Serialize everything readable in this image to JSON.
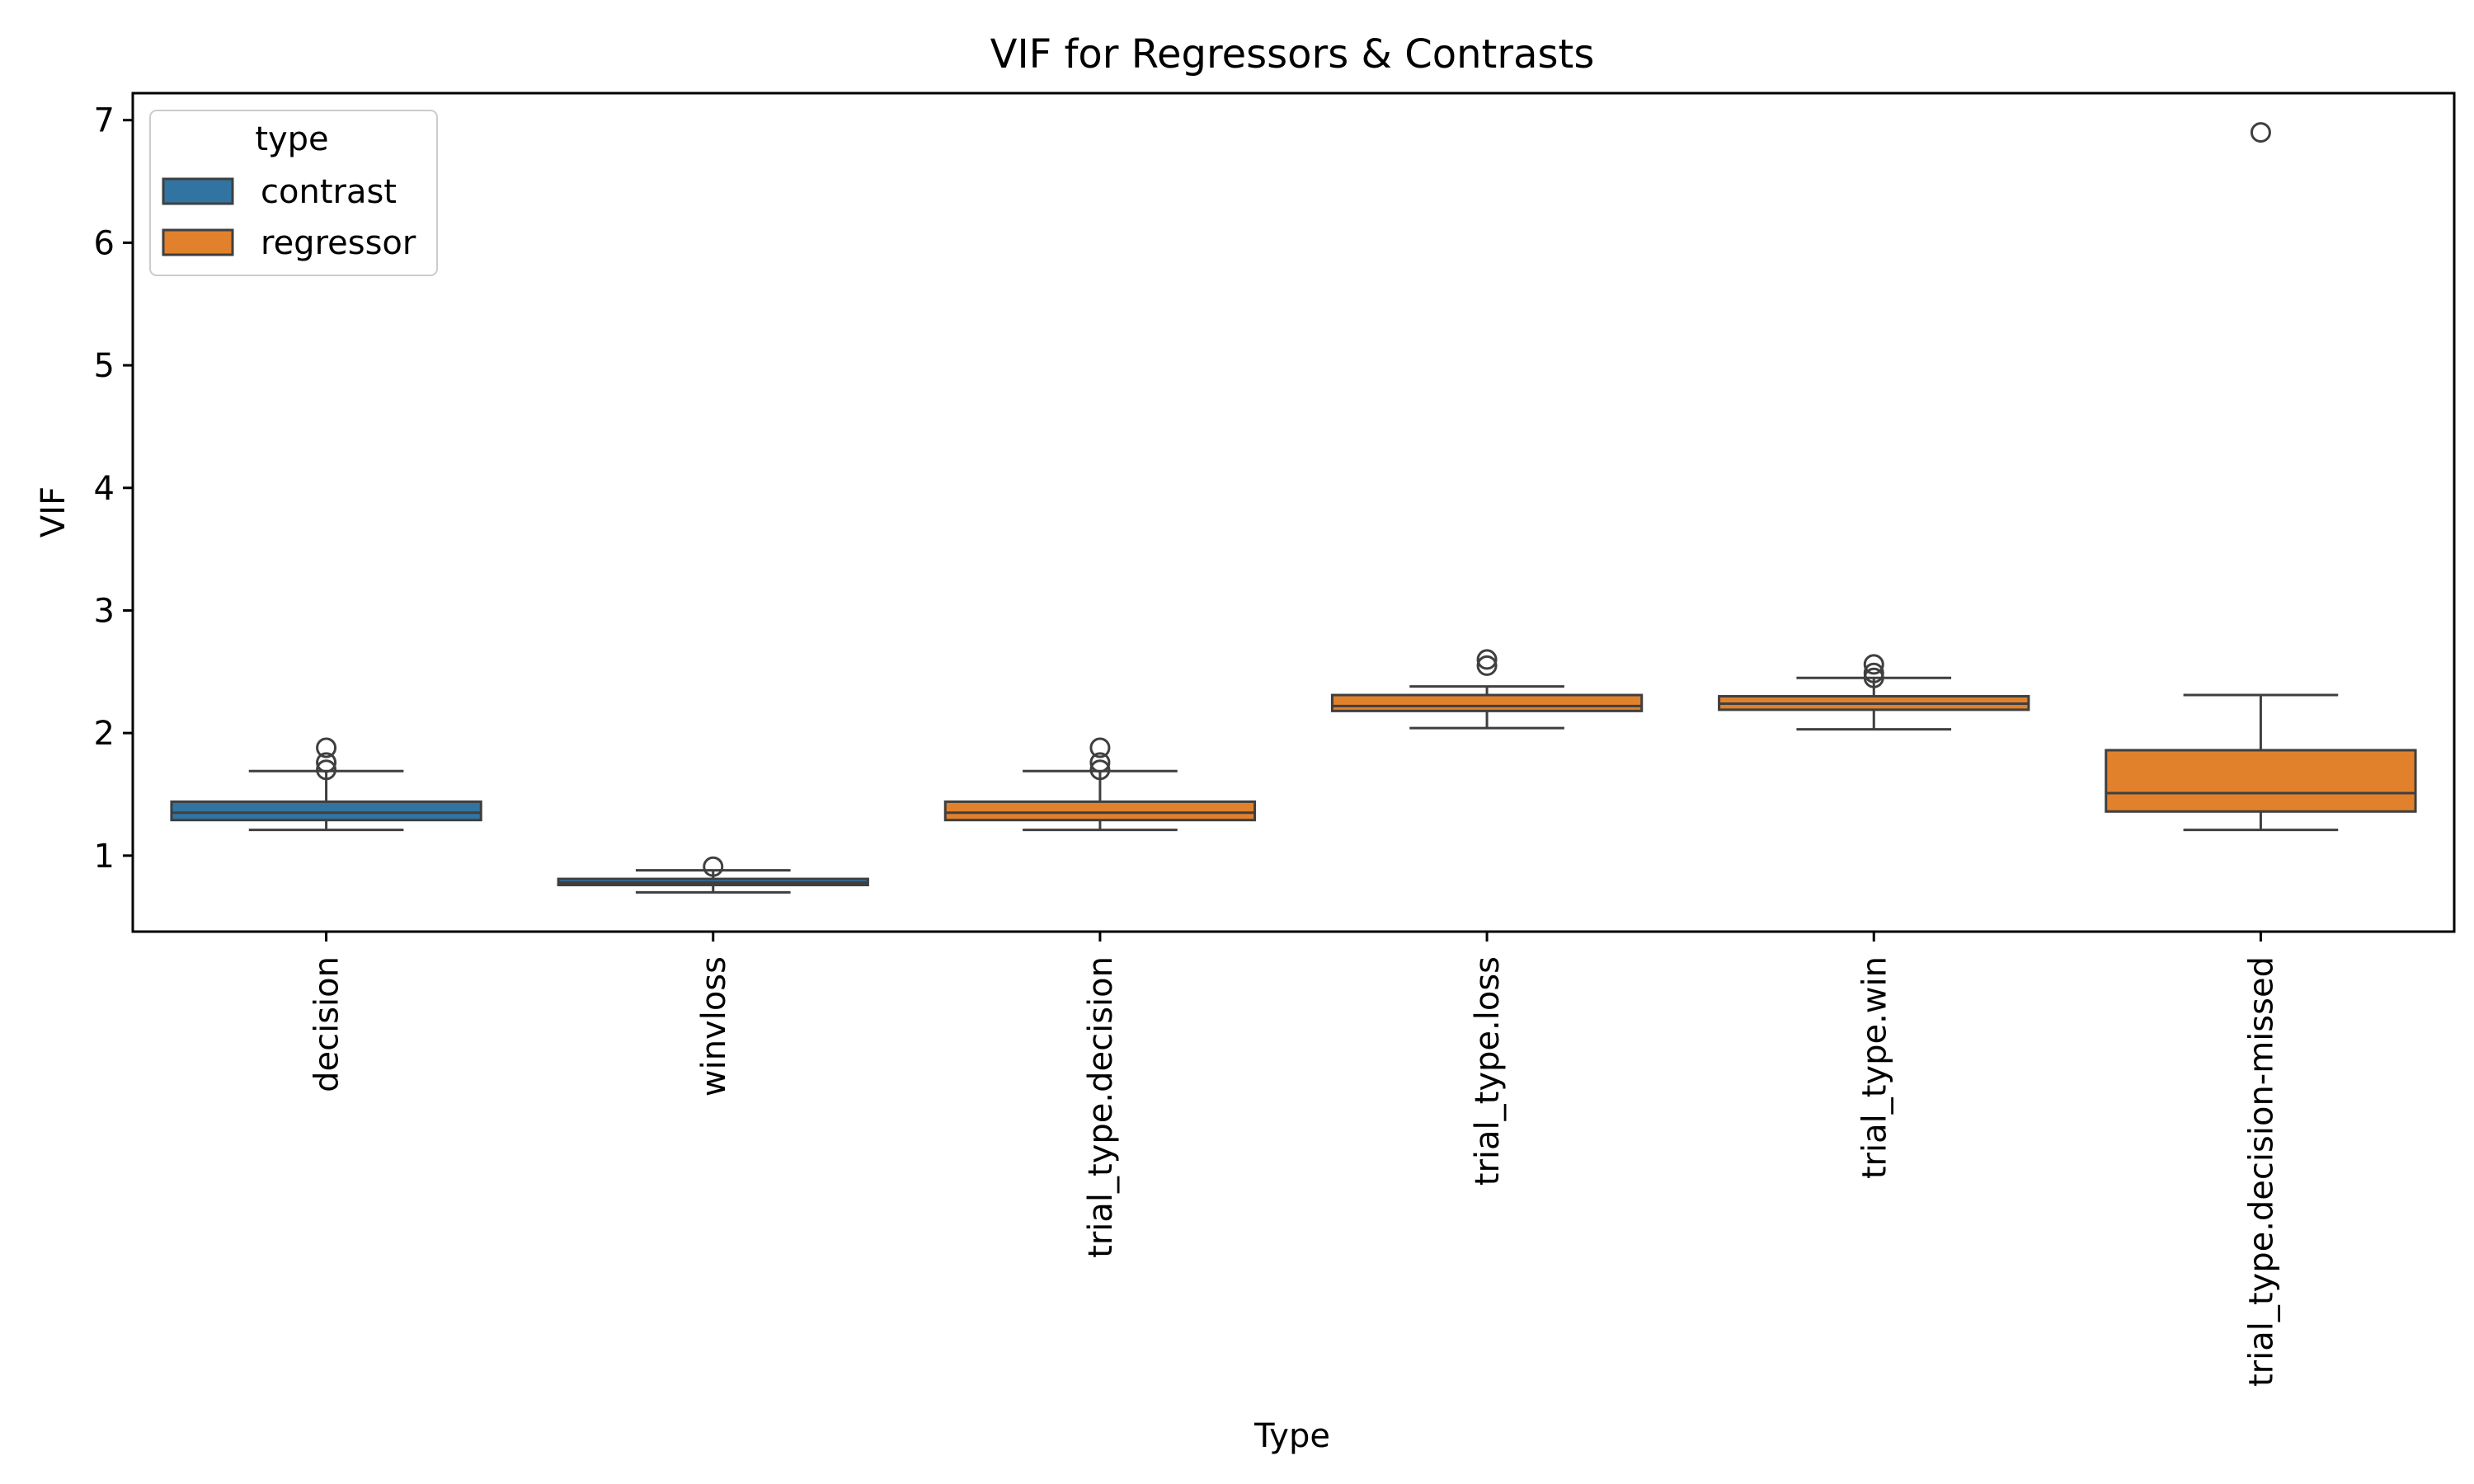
{
  "chart_data": {
    "type": "box",
    "title": "VIF for Regressors & Contrasts",
    "xlabel": "Type",
    "ylabel": "VIF",
    "ylim": [
      0.38,
      7.22
    ],
    "yticks": [
      1,
      2,
      3,
      4,
      5,
      6,
      7
    ],
    "grid": false,
    "legend": {
      "title": "type",
      "placement": "top-left",
      "entries": [
        {
          "label": "contrast",
          "color": "#3274a1"
        },
        {
          "label": "regressor",
          "color": "#e1812c"
        }
      ]
    },
    "categories": [
      {
        "label": "decision",
        "group": "contrast",
        "whisker_low": 1.21,
        "q1": 1.29,
        "median": 1.35,
        "q3": 1.44,
        "whisker_high": 1.69,
        "outliers": [
          1.88,
          1.76,
          1.7
        ]
      },
      {
        "label": "winvloss",
        "group": "contrast",
        "whisker_low": 0.7,
        "q1": 0.76,
        "median": 0.78,
        "q3": 0.81,
        "whisker_high": 0.88,
        "outliers": [
          0.91
        ]
      },
      {
        "label": "trial_type.decision",
        "group": "regressor",
        "whisker_low": 1.21,
        "q1": 1.29,
        "median": 1.35,
        "q3": 1.44,
        "whisker_high": 1.69,
        "outliers": [
          1.88,
          1.76,
          1.7
        ]
      },
      {
        "label": "trial_type.loss",
        "group": "regressor",
        "whisker_low": 2.04,
        "q1": 2.18,
        "median": 2.22,
        "q3": 2.31,
        "whisker_high": 2.38,
        "outliers": [
          2.6,
          2.55
        ]
      },
      {
        "label": "trial_type.win",
        "group": "regressor",
        "whisker_low": 2.03,
        "q1": 2.19,
        "median": 2.24,
        "q3": 2.3,
        "whisker_high": 2.45,
        "outliers": [
          2.56,
          2.49,
          2.45
        ]
      },
      {
        "label": "trial_type.decision-missed",
        "group": "regressor",
        "whisker_low": 1.21,
        "q1": 1.36,
        "median": 1.51,
        "q3": 1.86,
        "whisker_high": 2.31,
        "outliers": [
          6.9
        ]
      }
    ]
  }
}
